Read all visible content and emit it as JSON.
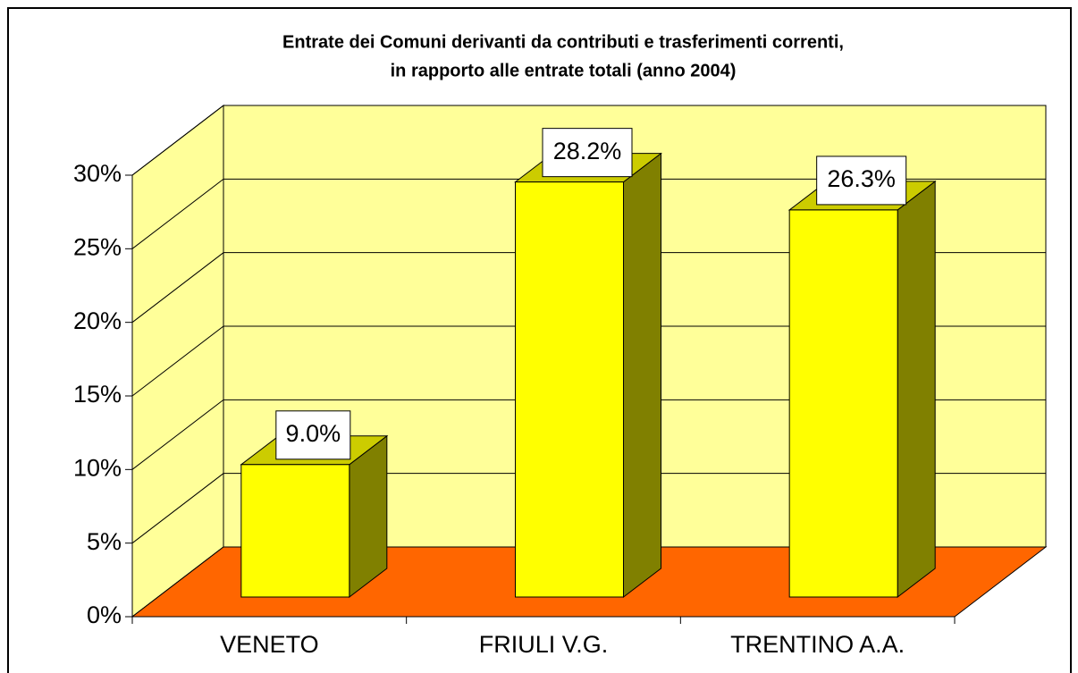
{
  "chart_data": {
    "type": "bar3d",
    "title": [
      "Entrate dei Comuni derivanti da contributi e trasferimenti correnti,",
      "in rapporto alle entrate totali (anno 2004)"
    ],
    "categories": [
      "VENETO",
      "FRIULI V.G.",
      "TRENTINO A.A."
    ],
    "values": [
      9.0,
      28.2,
      26.3
    ],
    "value_labels": [
      "9.0%",
      "28.2%",
      "26.3%"
    ],
    "color": "#ffff00",
    "ylim": [
      0,
      30
    ],
    "yticks": [
      {
        "value": 0,
        "label": "0%"
      },
      {
        "value": 5,
        "label": "5%"
      },
      {
        "value": 10,
        "label": "10%"
      },
      {
        "value": 15,
        "label": "15%"
      },
      {
        "value": 20,
        "label": "20%"
      },
      {
        "value": 25,
        "label": "25%"
      },
      {
        "value": 30,
        "label": "30%"
      }
    ],
    "grid": true
  }
}
